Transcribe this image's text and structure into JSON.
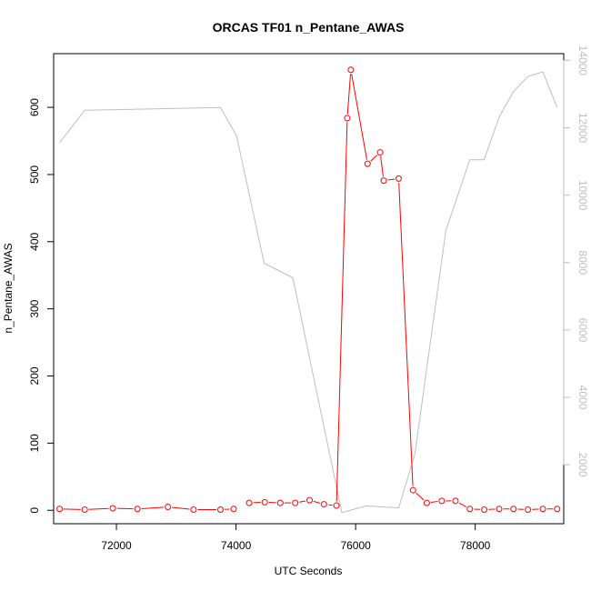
{
  "chart_data": {
    "type": "line",
    "title": "ORCAS TF01 n_Pentane_AWAS",
    "xlabel": "UTC Seconds",
    "ylabel": "n_Pentane_AWAS",
    "y2label": "",
    "xlim": [
      70950,
      79480
    ],
    "ylim": [
      -20,
      680
    ],
    "y2lim": [
      250,
      14200
    ],
    "x_ticks": [
      72000,
      74000,
      76000,
      78000
    ],
    "y_ticks": [
      0,
      100,
      200,
      300,
      400,
      500,
      600
    ],
    "y2_ticks": [
      2000,
      4000,
      6000,
      8000,
      10000,
      12000,
      14000
    ],
    "grid": false,
    "legend": "none",
    "colors": {
      "primary": "#ff0000",
      "secondary": "#bebebe"
    },
    "series": [
      {
        "axis": "left",
        "style": "line+open-circle",
        "segments": [
          {
            "x": [
              71050,
              71470,
              71940,
              72350,
              72860,
              73290,
              73740,
              73960
            ],
            "y": [
              2,
              1,
              3,
              2,
              5,
              1,
              1,
              2
            ]
          },
          {
            "x": [
              74220,
              74480,
              74740,
              74990,
              75230,
              75470,
              75680,
              75860,
              75920,
              76200,
              76410,
              76470,
              76720,
              76960,
              77190,
              77440,
              77670,
              77910,
              78150,
              78400,
              78640,
              78880,
              79130,
              79370
            ],
            "y": [
              11,
              12,
              11,
              11,
              15,
              9,
              7,
              584,
              656,
              516,
              533,
              491,
              494,
              30,
              11,
              14,
              14,
              2,
              1,
              2,
              2,
              1,
              2,
              2
            ]
          }
        ]
      },
      {
        "axis": "right",
        "style": "line",
        "x": [
          71050,
          71470,
          73740,
          74010,
          74470,
          74950,
          75770,
          76180,
          76720,
          76990,
          77510,
          77910,
          78150,
          78400,
          78640,
          78880,
          79130,
          79370
        ],
        "y": [
          11560,
          12520,
          12600,
          11760,
          7980,
          7550,
          580,
          780,
          720,
          2300,
          8950,
          11050,
          11050,
          12320,
          13080,
          13520,
          13660,
          12600
        ]
      }
    ]
  }
}
